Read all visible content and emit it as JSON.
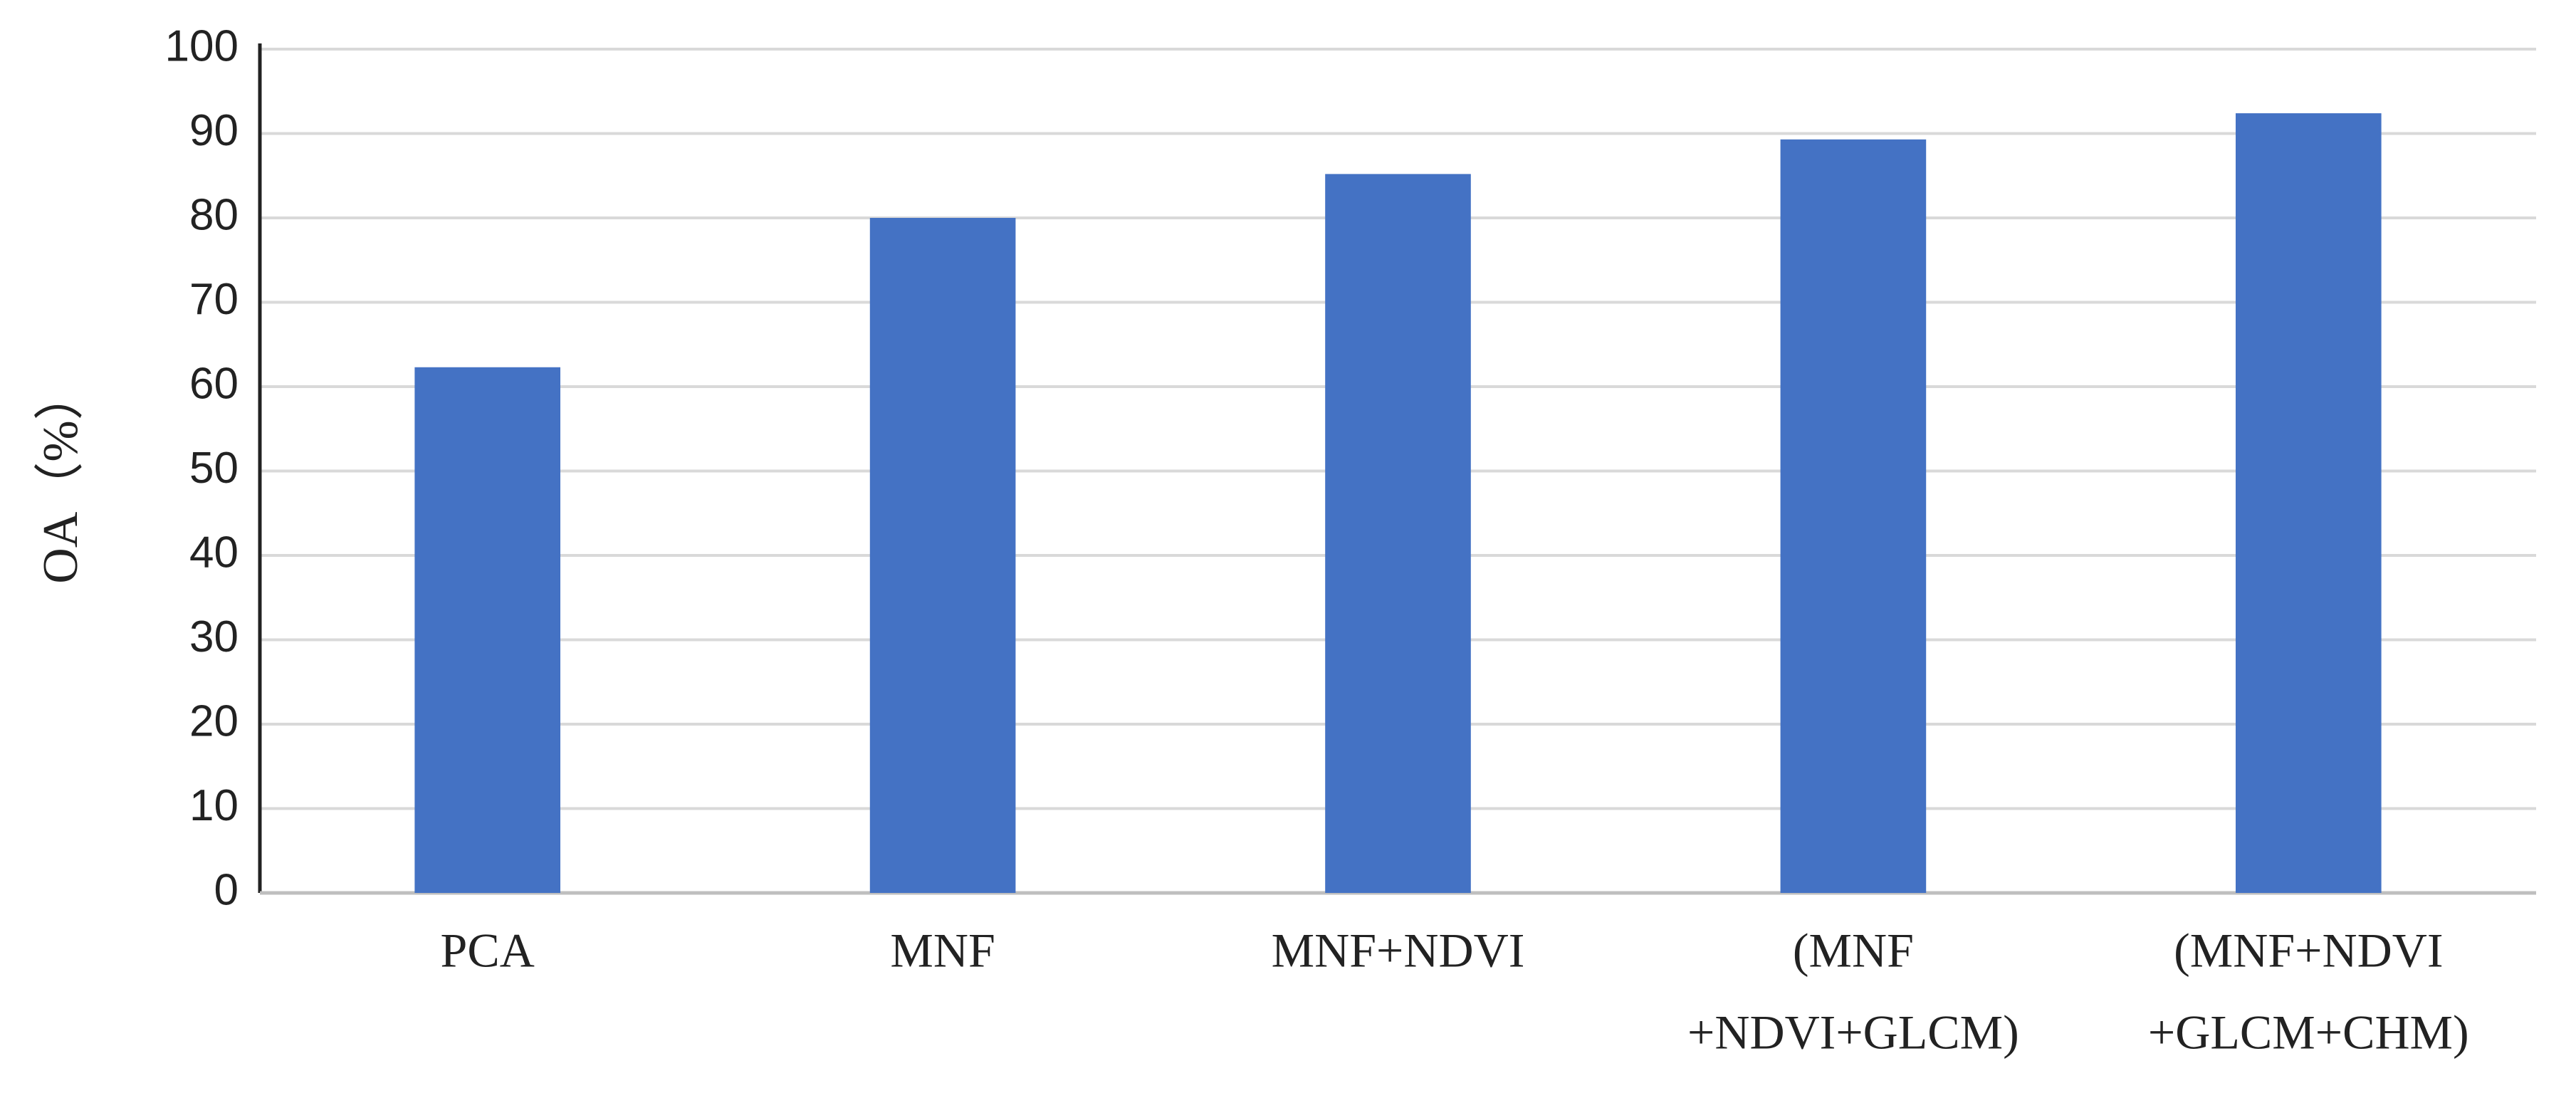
{
  "chart_data": {
    "type": "bar",
    "y_label": "OA（%）",
    "categories": [
      [
        "PCA"
      ],
      [
        "MNF"
      ],
      [
        "MNF+NDVI"
      ],
      [
        "(MNF",
        "+NDVI+GLCM)"
      ],
      [
        "(MNF+NDVI",
        "+GLCM+CHM)"
      ]
    ],
    "values": [
      62.3,
      80,
      85.2,
      89.3,
      92.4
    ],
    "color": "#4472c4",
    "ylim": [
      0,
      100
    ],
    "yticks": [
      0,
      10,
      20,
      30,
      40,
      50,
      60,
      70,
      80,
      90,
      100
    ],
    "grid": true
  }
}
